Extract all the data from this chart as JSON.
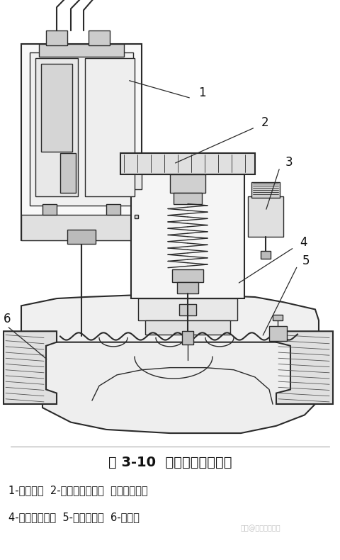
{
  "title_line1": "图 3-10  电磁阀结构示意图",
  "caption_line1": "1-电磁头；  2-流量调节手柄；  外排气螺丝；",
  "caption_line2": "4-电磁阀上腔；  5-橡皮隔膜；  6-导流孔",
  "watermark": "头条@电气自动化超",
  "bg_color": "#ffffff",
  "text_color": "#111111",
  "fig_width": 4.8,
  "fig_height": 7.9,
  "dpi": 100,
  "diagram_bg": "#ffffff",
  "lc": "#2a2a2a",
  "lc_gray": "#888888"
}
